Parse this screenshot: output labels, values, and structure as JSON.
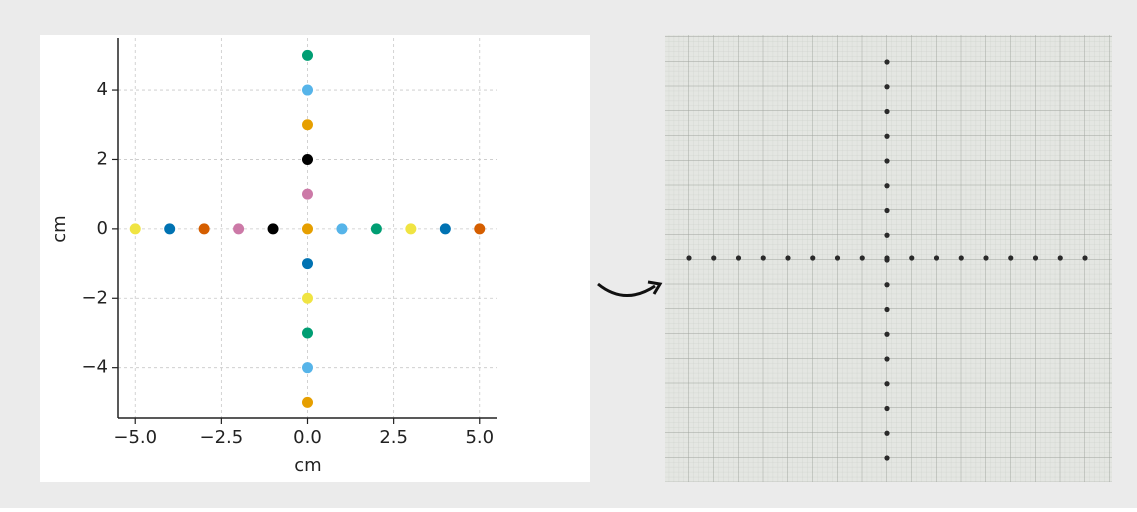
{
  "chart_data": {
    "type": "scatter",
    "x_label": "cm",
    "y_label": "cm",
    "x": [
      -5,
      -4,
      -3,
      -2,
      -1,
      0,
      1,
      2,
      3,
      4,
      5,
      0,
      0,
      0,
      0,
      0,
      0,
      0,
      0,
      0,
      0
    ],
    "y": [
      0,
      0,
      0,
      0,
      0,
      0,
      0,
      0,
      0,
      0,
      0,
      5,
      4,
      3,
      2,
      1,
      -1,
      -2,
      -3,
      -4,
      -5
    ],
    "colors": [
      "#f0e442",
      "#0072b2",
      "#d55e00",
      "#cc79a7",
      "#000000",
      "#e69f00",
      "#56b4e9",
      "#009e73",
      "#f0e442",
      "#0072b2",
      "#d55e00",
      "#009e73",
      "#56b4e9",
      "#e69f00",
      "#000000",
      "#cc79a7",
      "#0072b2",
      "#f0e442",
      "#009e73",
      "#56b4e9",
      "#e69f00"
    ],
    "xlim": [
      -5.5,
      5.5
    ],
    "ylim": [
      -5.45,
      5.5
    ],
    "xticks": [
      {
        "value": -5,
        "label": "−5.0"
      },
      {
        "value": -2.5,
        "label": "−2.5"
      },
      {
        "value": 0,
        "label": "0.0"
      },
      {
        "value": 2.5,
        "label": "2.5"
      },
      {
        "value": 5,
        "label": "5.0"
      }
    ],
    "yticks": [
      {
        "value": -4,
        "label": "−4"
      },
      {
        "value": -2,
        "label": "−2"
      },
      0,
      2,
      4
    ],
    "grid": true
  }
}
